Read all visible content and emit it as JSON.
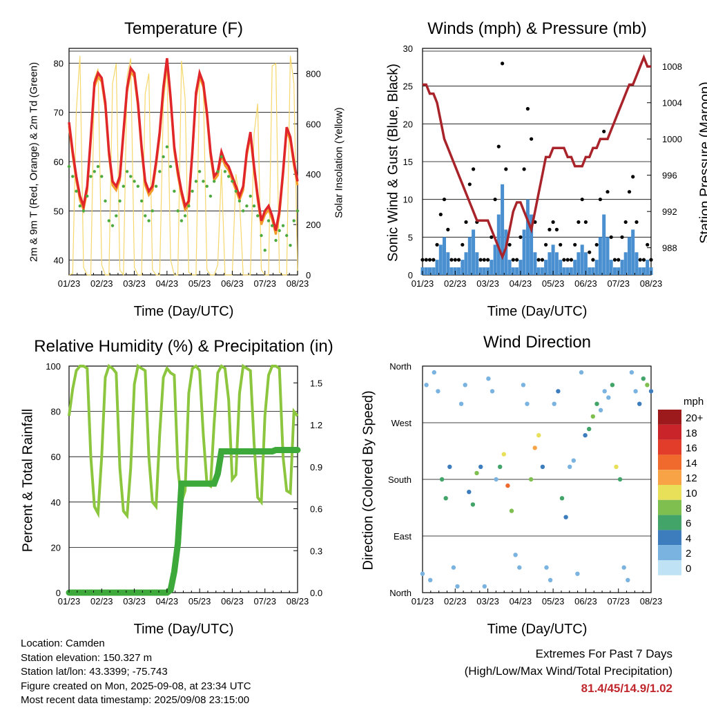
{
  "footer": {
    "location": "Location: Camden",
    "elevation": "Station elevation: 150.327 m",
    "latlon": "Station lat/lon: 43.3399; -75.743",
    "created": "Figure created on Mon, 2025-09-08, at 23:34 UTC",
    "recent": "Most recent data timestamp: 2025/09/08 23:15:00"
  },
  "extremes": {
    "title": "Extremes For Past 7 Days",
    "subtitle": "(High/Low/Max Wind/Total Precipitation)",
    "values": "81.4/45/14.9/1.02",
    "value_color": "#c0272d"
  },
  "colors": {
    "temp2m": "#e0262a",
    "temp9m": "#f39c2a",
    "dew": "#4daa3e",
    "solar": "#f5d76a",
    "wind": "#4a90d0",
    "gust": "#000000",
    "pressure": "#a8232a",
    "rh": "#8cc63f",
    "precip": "#3ca93a"
  },
  "wind_legend": {
    "title": "mph",
    "labels": [
      "20+",
      "18",
      "16",
      "14",
      "12",
      "10",
      "8",
      "6",
      "4",
      "2",
      "0"
    ],
    "colors": [
      "#9c1a1c",
      "#c8242a",
      "#e13d2a",
      "#f06a2e",
      "#f8a346",
      "#e9e05a",
      "#7fbf4f",
      "#42a469",
      "#3d7dbd",
      "#7ab3e0",
      "#bfe2f5"
    ]
  },
  "chart_data": [
    {
      "type": "line",
      "title": "Temperature (F)",
      "xlabel": "Time (Day/UTC)",
      "ylabel": "2m & 9m T (Red, Orange) & 2m Td (Green)",
      "y2label": "Solar Insolation (Yellow)",
      "xticks": [
        "01/23",
        "02/23",
        "03/23",
        "04/23",
        "05/23",
        "06/23",
        "07/23",
        "08/23"
      ],
      "ylim": [
        37,
        83
      ],
      "yticks": [
        "40",
        "50",
        "60",
        "70",
        "80"
      ],
      "y2lim": [
        0,
        900
      ],
      "y2ticks": [
        "0",
        "200",
        "400",
        "600",
        "800"
      ],
      "series": [
        {
          "name": "2m T",
          "values": [
            68,
            62,
            57,
            53,
            51,
            55,
            65,
            76,
            78,
            77,
            72,
            62,
            56,
            55,
            57,
            66,
            75,
            79,
            78,
            72,
            63,
            56,
            54,
            55,
            60,
            66,
            75,
            81,
            73,
            63,
            58,
            54,
            51,
            52,
            62,
            74,
            78,
            76,
            70,
            62,
            57,
            58,
            62,
            60,
            59,
            57,
            55,
            53,
            55,
            62,
            66,
            59,
            53,
            48,
            50,
            51,
            49,
            46,
            50,
            58,
            67,
            65,
            60,
            56
          ]
        },
        {
          "name": "2m Td",
          "values": [
            59,
            57,
            54,
            51,
            50,
            53,
            57,
            58,
            59,
            57,
            52,
            48,
            47,
            49,
            52,
            55,
            58,
            57,
            56,
            55,
            52,
            49,
            48,
            50,
            55,
            58,
            61,
            63,
            59,
            54,
            50,
            48,
            49,
            51,
            54,
            56,
            58,
            56,
            55,
            53,
            56,
            58,
            61,
            58,
            57,
            56,
            54,
            52,
            50,
            51,
            53,
            51,
            49,
            45,
            42,
            48,
            47,
            44,
            46,
            47,
            45,
            43,
            48,
            50
          ]
        },
        {
          "name": "Solar",
          "values": [
            0,
            5,
            650,
            870,
            30,
            0,
            0,
            780,
            820,
            40,
            0,
            0,
            760,
            840,
            20,
            0,
            790,
            860,
            30,
            0,
            0,
            720,
            800,
            20,
            0,
            0,
            680,
            820,
            60,
            0,
            0,
            850,
            700,
            10,
            0,
            0,
            780,
            760,
            20,
            0,
            0,
            40,
            420,
            0,
            0,
            0,
            400,
            300,
            0,
            0,
            0,
            560,
            680,
            20,
            0,
            0,
            830,
            840,
            10,
            0,
            0,
            870,
            760,
            0
          ]
        }
      ]
    },
    {
      "type": "scatter",
      "title": "Winds (mph) & Pressure (mb)",
      "xlabel": "Time (Day/UTC)",
      "ylabel": "Sonic Wind & Gust (Blue, Black)",
      "y2label": "Station Pressure (Maroon)",
      "xticks": [
        "01/23",
        "02/23",
        "03/23",
        "04/23",
        "05/23",
        "06/23",
        "07/23",
        "08/23"
      ],
      "ylim": [
        0,
        30
      ],
      "yticks": [
        "0",
        "5",
        "10",
        "15",
        "20",
        "25",
        "30"
      ],
      "y2lim": [
        985,
        1010
      ],
      "y2ticks": [
        "988",
        "992",
        "996",
        "1000",
        "1004",
        "1008"
      ],
      "series": [
        {
          "name": "Wind",
          "values": [
            1,
            1,
            1,
            1,
            2,
            4,
            5,
            3,
            1,
            1,
            1,
            2,
            3,
            5,
            6,
            3,
            1,
            1,
            1,
            2,
            4,
            8,
            12,
            6,
            2,
            1,
            1,
            2,
            6,
            10,
            8,
            3,
            1,
            1,
            2,
            3,
            4,
            3,
            2,
            1,
            1,
            1,
            2,
            3,
            4,
            3,
            1,
            1,
            2,
            5,
            8,
            5,
            2,
            1,
            1,
            2,
            3,
            5,
            6,
            3,
            1,
            1,
            2,
            1
          ]
        },
        {
          "name": "Gust",
          "values": [
            2,
            2,
            2,
            2,
            4,
            8,
            10,
            6,
            2,
            2,
            2,
            4,
            7,
            12,
            14,
            7,
            2,
            2,
            2,
            5,
            10,
            17,
            28,
            14,
            4,
            2,
            2,
            5,
            14,
            22,
            18,
            7,
            2,
            2,
            4,
            6,
            7,
            6,
            4,
            2,
            2,
            2,
            4,
            7,
            10,
            7,
            3,
            2,
            4,
            10,
            19,
            11,
            5,
            2,
            2,
            5,
            7,
            11,
            13,
            7,
            2,
            2,
            4,
            2
          ]
        },
        {
          "name": "Pressure",
          "values": [
            1006,
            1006,
            1005,
            1005,
            1004,
            1002,
            1000,
            999,
            998,
            997,
            996,
            995,
            994,
            993,
            992,
            991,
            991,
            991,
            991,
            990,
            989,
            988,
            987,
            988,
            990,
            992,
            993,
            993,
            992,
            991,
            990,
            992,
            994,
            996,
            998,
            998,
            999,
            999,
            999,
            999,
            998,
            998,
            997,
            997,
            997,
            998,
            998,
            999,
            999,
            1000,
            1000,
            1000,
            1001,
            1002,
            1003,
            1004,
            1005,
            1006,
            1006,
            1007,
            1008,
            1009,
            1008,
            1008
          ]
        }
      ]
    },
    {
      "type": "line",
      "title": "Relative Humidity (%) & Precipitation (in)",
      "xlabel": "Time (Day/UTC)",
      "ylabel": "Percent & Total Rainfall",
      "xticks": [
        "01/23",
        "02/23",
        "03/23",
        "04/23",
        "05/23",
        "06/23",
        "07/23",
        "08/23"
      ],
      "ylim": [
        0,
        100
      ],
      "yticks": [
        "0",
        "20",
        "40",
        "60",
        "80",
        "100"
      ],
      "y2lim": [
        0,
        1.62
      ],
      "y2ticks": [
        "0.0",
        "0.3",
        "0.6",
        "0.9",
        "1.2",
        "1.5"
      ],
      "series": [
        {
          "name": "RH",
          "values": [
            78,
            90,
            98,
            100,
            100,
            99,
            60,
            38,
            35,
            60,
            95,
            100,
            99,
            97,
            55,
            36,
            34,
            55,
            92,
            100,
            99,
            98,
            60,
            40,
            38,
            70,
            95,
            99,
            97,
            96,
            55,
            40,
            45,
            88,
            99,
            100,
            98,
            70,
            48,
            47,
            75,
            97,
            100,
            99,
            85,
            50,
            52,
            88,
            100,
            99,
            98,
            66,
            42,
            40,
            78,
            96,
            100,
            100,
            99,
            60,
            45,
            44,
            80,
            78
          ]
        },
        {
          "name": "Precipitation",
          "values": [
            0,
            0,
            0,
            0,
            0,
            0,
            0,
            0,
            0,
            0,
            0,
            0,
            0,
            0,
            0,
            0,
            0,
            0,
            0,
            0,
            0,
            0,
            0,
            0,
            0,
            0,
            0,
            0,
            0.02,
            0.15,
            0.35,
            0.78,
            0.78,
            0.78,
            0.78,
            0.78,
            0.78,
            0.78,
            0.78,
            0.78,
            0.78,
            0.85,
            1.01,
            1.01,
            1.01,
            1.01,
            1.01,
            1.01,
            1.01,
            1.01,
            1.01,
            1.01,
            1.01,
            1.01,
            1.01,
            1.01,
            1.01,
            1.02,
            1.02,
            1.02,
            1.02,
            1.02,
            1.02,
            1.02
          ]
        }
      ]
    },
    {
      "type": "scatter",
      "title": "Wind Direction",
      "xlabel": "Time (Day/UTC)",
      "ylabel": "Direction (Colored By Speed)",
      "xticks": [
        "01/23",
        "02/23",
        "03/23",
        "04/23",
        "05/23",
        "06/23",
        "07/23",
        "08/23"
      ],
      "yticks": [
        "North",
        "East",
        "South",
        "West",
        "North"
      ],
      "ylim": [
        0,
        360
      ],
      "series": [
        {
          "name": "Direction",
          "values": [
            30,
            330,
            20,
            350,
            320,
            180,
            150,
            200,
            40,
            10,
            300,
            330,
            160,
            140,
            190,
            200,
            10,
            340,
            320,
            180,
            200,
            220,
            170,
            130,
            60,
            40,
            330,
            300,
            180,
            230,
            250,
            200,
            40,
            20,
            300,
            320,
            150,
            120,
            200,
            210,
            30,
            350,
            250,
            260,
            280,
            300,
            290,
            320,
            310,
            330,
            200,
            180,
            40,
            20,
            350,
            320,
            300,
            340,
            330,
            320
          ]
        },
        {
          "name": "Speed",
          "values": [
            1,
            1,
            1,
            1,
            2,
            5,
            6,
            3,
            1,
            1,
            1,
            2,
            4,
            6,
            8,
            3,
            1,
            1,
            1,
            2,
            5,
            9,
            13,
            7,
            2,
            1,
            1,
            2,
            7,
            12,
            10,
            3,
            1,
            1,
            2,
            4,
            5,
            4,
            2,
            1,
            1,
            1,
            4,
            6,
            8,
            5,
            2,
            1,
            2,
            6,
            9,
            6,
            2,
            1,
            1,
            2,
            4,
            6,
            7,
            3
          ]
        }
      ]
    }
  ]
}
